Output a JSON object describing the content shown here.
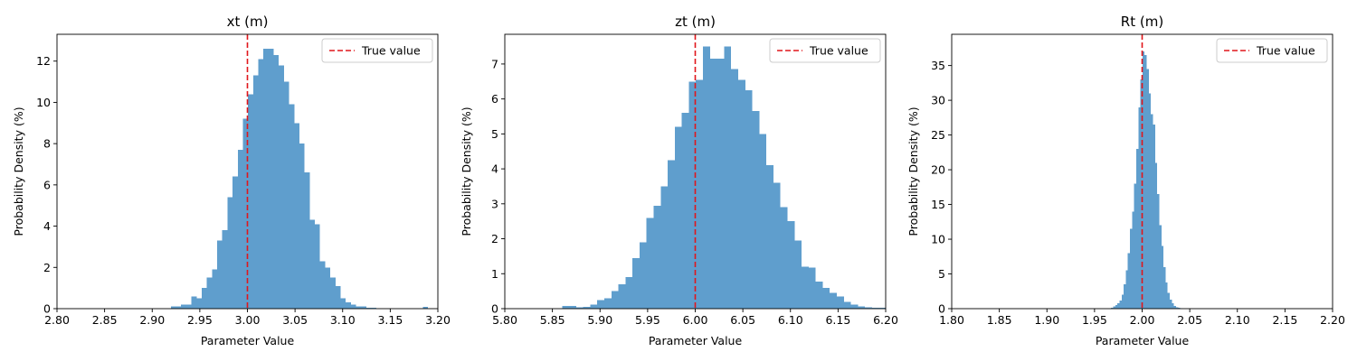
{
  "colors": {
    "bar": "#5f9ecd",
    "true_line": "#e0161b",
    "axis": "#000000",
    "legend_border": "#cccccc"
  },
  "chart_data": [
    {
      "type": "bar",
      "title": "xt (m)",
      "xlabel": "Parameter Value",
      "ylabel": "Probability Density (%)",
      "xlim": [
        2.8,
        3.2
      ],
      "ylim": [
        0,
        13.3
      ],
      "xticks": [
        "2.80",
        "2.85",
        "2.90",
        "2.95",
        "3.00",
        "3.05",
        "3.10",
        "3.15",
        "3.20"
      ],
      "xtick_values": [
        2.8,
        2.85,
        2.9,
        2.95,
        3.0,
        3.05,
        3.1,
        3.15,
        3.2
      ],
      "yticks": [
        0,
        2,
        4,
        6,
        8,
        10,
        12
      ],
      "true_value": 3.0,
      "legend": {
        "label": "True value",
        "position": "top-right"
      },
      "bins": {
        "x": [
          2.9223,
          2.9277,
          2.9331,
          2.9385,
          2.9439,
          2.9493,
          2.9547,
          2.9601,
          2.9655,
          2.9709,
          2.9763,
          2.9817,
          2.9871,
          2.9925,
          2.9979,
          3.0033,
          3.0087,
          3.0141,
          3.0195,
          3.0249,
          3.0303,
          3.0357,
          3.0411,
          3.0465,
          3.0519,
          3.0573,
          3.0627,
          3.0681,
          3.0735,
          3.0789,
          3.0843,
          3.0897,
          3.0951,
          3.1005,
          3.1059,
          3.1113,
          3.1167,
          3.1221,
          3.1275,
          3.1329,
          3.1383,
          3.1437,
          3.1491,
          3.1545,
          3.1599,
          3.1653,
          3.1707,
          3.1761,
          3.1815,
          3.1869
        ],
        "width": 0.0054,
        "values": [
          0.1,
          0.1,
          0.2,
          0.2,
          0.6,
          0.5,
          1.0,
          1.5,
          1.9,
          3.3,
          3.8,
          5.4,
          6.4,
          7.7,
          9.2,
          10.4,
          11.3,
          12.1,
          12.6,
          12.6,
          12.3,
          11.8,
          11.0,
          9.9,
          9.0,
          8.0,
          6.6,
          4.3,
          4.1,
          2.3,
          2.0,
          1.5,
          1.1,
          0.5,
          0.3,
          0.2,
          0.1,
          0.1,
          0.05,
          0.05,
          0.0,
          0.0,
          0.0,
          0.0,
          0.0,
          0.0,
          0.0,
          0.0,
          0.0,
          0.08
        ]
      }
    },
    {
      "type": "bar",
      "title": "zt (m)",
      "xlabel": "Parameter Value",
      "ylabel": "Probability Density (%)",
      "xlim": [
        5.8,
        6.2
      ],
      "ylim": [
        0,
        7.85
      ],
      "xticks": [
        "5.80",
        "5.85",
        "5.90",
        "5.95",
        "6.00",
        "6.05",
        "6.10",
        "6.15",
        "6.20"
      ],
      "xtick_values": [
        5.8,
        5.85,
        5.9,
        5.95,
        6.0,
        6.05,
        6.1,
        6.15,
        6.2
      ],
      "yticks": [
        0,
        1,
        2,
        3,
        4,
        5,
        6,
        7
      ],
      "true_value": 6.0,
      "legend": {
        "label": "True value",
        "position": "top-right"
      },
      "bins": {
        "x": [
          5.8638,
          5.8712,
          5.8786,
          5.886,
          5.8934,
          5.9008,
          5.9082,
          5.9156,
          5.923,
          5.9304,
          5.9378,
          5.9452,
          5.9526,
          5.96,
          5.9674,
          5.9748,
          5.9822,
          5.9896,
          5.997,
          6.0044,
          6.0118,
          6.0192,
          6.0266,
          6.034,
          6.0414,
          6.0488,
          6.0562,
          6.0636,
          6.071,
          6.0784,
          6.0858,
          6.0932,
          6.1006,
          6.108,
          6.1154,
          6.1228,
          6.1302,
          6.1376,
          6.145,
          6.1524,
          6.1598,
          6.1672,
          6.1746,
          6.182,
          6.1894,
          6.1968
        ],
        "width": 0.0074,
        "values": [
          0.08,
          0.08,
          0.04,
          0.05,
          0.12,
          0.25,
          0.3,
          0.5,
          0.7,
          0.9,
          1.45,
          1.9,
          2.6,
          2.95,
          3.5,
          4.25,
          5.2,
          5.6,
          6.5,
          6.55,
          7.5,
          7.15,
          7.15,
          7.5,
          6.85,
          6.55,
          6.25,
          5.65,
          5.0,
          4.1,
          3.6,
          2.9,
          2.5,
          1.95,
          1.2,
          1.18,
          0.78,
          0.6,
          0.45,
          0.35,
          0.2,
          0.12,
          0.07,
          0.04,
          0.03,
          0.02
        ]
      }
    },
    {
      "type": "bar",
      "title": "Rt (m)",
      "xlabel": "Parameter Value",
      "ylabel": "Probability Density (%)",
      "xlim": [
        1.8,
        2.2
      ],
      "ylim": [
        0,
        39.5
      ],
      "xticks": [
        "1.80",
        "1.85",
        "1.90",
        "1.95",
        "2.00",
        "2.05",
        "2.10",
        "2.15",
        "2.20"
      ],
      "xtick_values": [
        1.8,
        1.85,
        1.9,
        1.95,
        2.0,
        2.05,
        2.1,
        2.15,
        2.2
      ],
      "yticks": [
        0,
        5,
        10,
        15,
        20,
        25,
        30,
        35
      ],
      "true_value": 2.0,
      "legend": {
        "label": "True value",
        "position": "top-right"
      },
      "bins": {
        "x": [
          1.9685,
          1.9707,
          1.9729,
          1.9751,
          1.9773,
          1.9795,
          1.9817,
          1.9839,
          1.9861,
          1.9883,
          1.9905,
          1.9927,
          1.9949,
          1.9971,
          1.9993,
          2.0015,
          2.0037,
          2.0059,
          2.0081,
          2.0103,
          2.0125,
          2.0147,
          2.0169,
          2.0191,
          2.0213,
          2.0235,
          2.0257,
          2.0279,
          2.0301,
          2.0323,
          2.0345,
          2.0367,
          2.0389,
          2.0411
        ],
        "width": 0.0022,
        "values": [
          0.1,
          0.3,
          0.5,
          0.8,
          1.2,
          2.0,
          3.5,
          5.5,
          8.0,
          11.5,
          14.0,
          18.0,
          23.0,
          29.0,
          33.0,
          37.0,
          36.5,
          34.5,
          31.0,
          28.0,
          26.5,
          21.0,
          16.5,
          12.0,
          9.0,
          6.0,
          3.8,
          2.3,
          1.3,
          0.8,
          0.4,
          0.2,
          0.1,
          0.05
        ]
      }
    }
  ]
}
